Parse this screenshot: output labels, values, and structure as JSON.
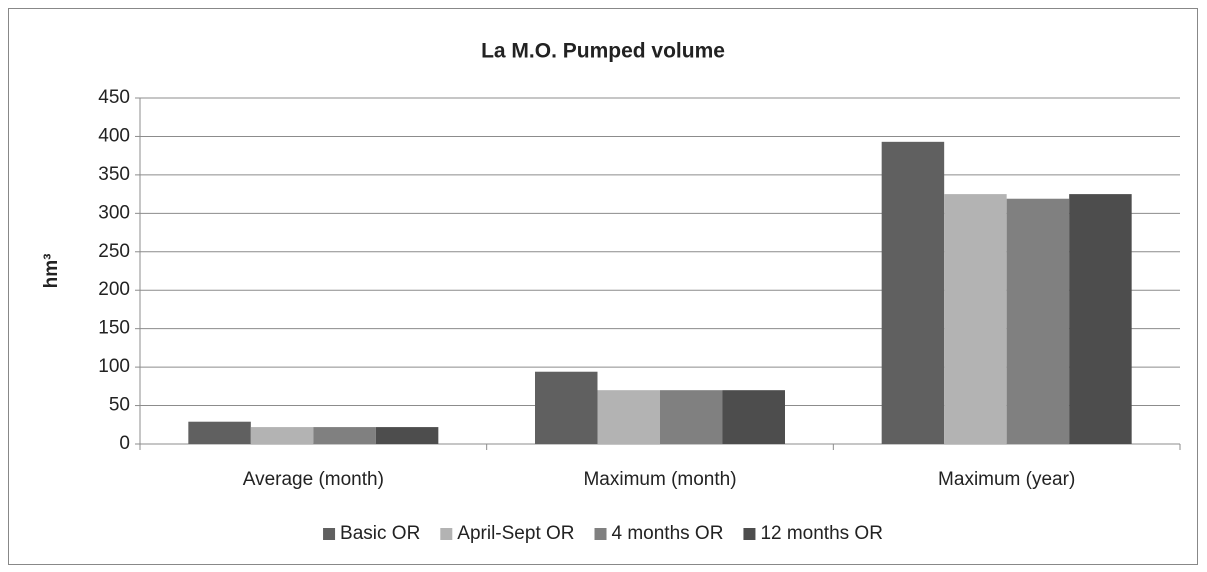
{
  "chart_data": {
    "type": "bar",
    "title": "La M.O. Pumped volume",
    "y_label": "hm³",
    "categories": [
      "Average (month)",
      "Maximum (month)",
      "Maximum (year)"
    ],
    "series": [
      {
        "name": "Basic OR",
        "color": "#606060",
        "values": [
          29,
          94,
          393
        ]
      },
      {
        "name": "April-Sept OR",
        "color": "#b3b3b3",
        "values": [
          22,
          70,
          325
        ]
      },
      {
        "name": "4 months OR",
        "color": "#808080",
        "values": [
          22,
          70,
          319
        ]
      },
      {
        "name": "12 months OR",
        "color": "#4d4d4d",
        "values": [
          22,
          70,
          325
        ]
      }
    ],
    "ylim": [
      0,
      450
    ],
    "yticks": [
      0,
      50,
      100,
      150,
      200,
      250,
      300,
      350,
      400,
      450
    ],
    "grid": true,
    "legend": "bottom"
  }
}
